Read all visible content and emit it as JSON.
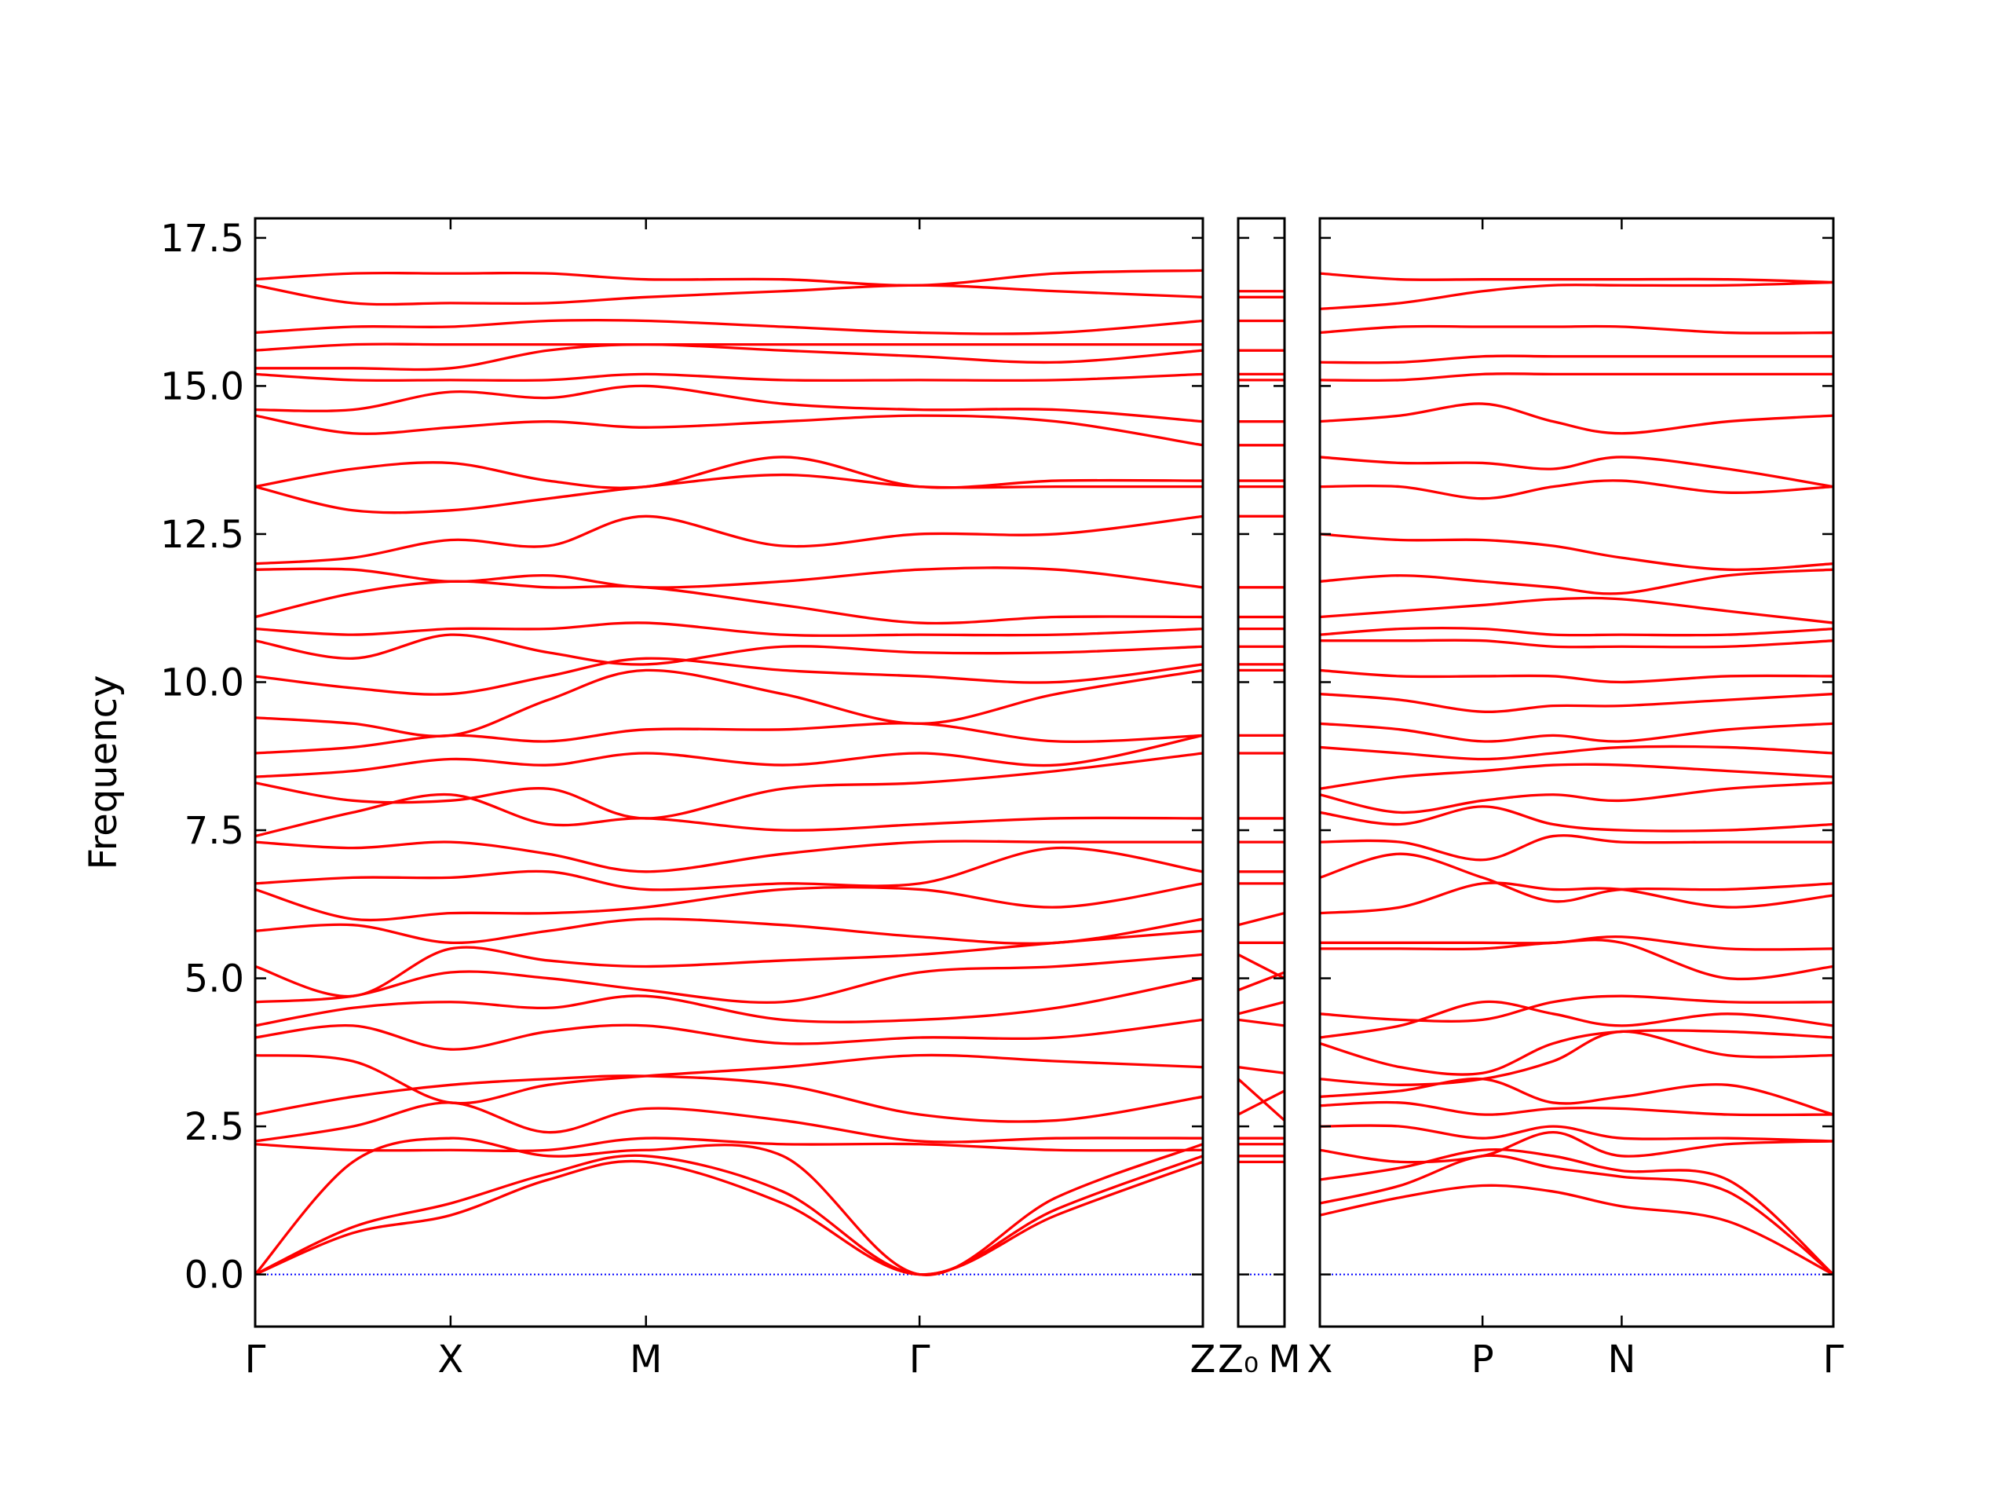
{
  "chart_data": [
    {
      "type": "line",
      "ylabel": "Frequency",
      "color": "#ff0000",
      "zero_line": 0,
      "zero_line_color": "#0000ff",
      "xlim": [
        0,
        4.85
      ],
      "ylim": [
        -0.88,
        17.83
      ],
      "xticks": [
        {
          "value": 0,
          "label": "Γ"
        },
        {
          "value": 1,
          "label": "X"
        },
        {
          "value": 2,
          "label": "M"
        },
        {
          "value": 3.4,
          "label": "Γ"
        },
        {
          "value": 4.85,
          "label": "Z"
        }
      ],
      "yticks": [
        {
          "value": 0,
          "label": "0.0"
        },
        2.5,
        {
          "value": 5,
          "label": "5.0"
        },
        7.5,
        {
          "value": 10,
          "label": "10.0"
        },
        12.5,
        {
          "value": 15,
          "label": "15.0"
        },
        17.5
      ],
      "x": [
        0,
        0.5,
        1,
        1.5,
        2,
        2.7,
        3.4,
        4.1,
        4.85
      ],
      "series": [
        {
          "values": [
            0,
            0.7,
            1.0,
            1.6,
            1.9,
            1.2,
            0,
            1.0,
            1.9
          ]
        },
        {
          "values": [
            0,
            0.8,
            1.2,
            1.7,
            2.0,
            1.4,
            0,
            1.1,
            2.0
          ]
        },
        {
          "values": [
            0,
            1.9,
            2.3,
            2.0,
            2.1,
            2.0,
            0,
            1.3,
            2.2
          ]
        },
        {
          "values": [
            2.2,
            2.1,
            2.1,
            2.1,
            2.3,
            2.2,
            2.2,
            2.1,
            2.1
          ]
        },
        {
          "values": [
            2.25,
            2.5,
            2.9,
            2.4,
            2.8,
            2.6,
            2.25,
            2.3,
            2.3
          ]
        },
        {
          "values": [
            2.7,
            3.0,
            3.2,
            3.3,
            3.35,
            3.2,
            2.7,
            2.6,
            3.0
          ]
        },
        {
          "values": [
            3.7,
            3.6,
            2.9,
            3.2,
            3.35,
            3.5,
            3.7,
            3.6,
            3.5
          ]
        },
        {
          "values": [
            4.0,
            4.2,
            3.8,
            4.1,
            4.2,
            3.9,
            4.0,
            4.0,
            4.3
          ]
        },
        {
          "values": [
            4.2,
            4.5,
            4.6,
            4.5,
            4.7,
            4.3,
            4.3,
            4.5,
            5.0
          ]
        },
        {
          "values": [
            4.6,
            4.7,
            5.1,
            5.0,
            4.8,
            4.6,
            5.1,
            5.2,
            5.4
          ]
        },
        {
          "values": [
            5.2,
            4.7,
            5.5,
            5.3,
            5.2,
            5.3,
            5.4,
            5.6,
            5.8
          ]
        },
        {
          "values": [
            5.8,
            5.9,
            5.6,
            5.8,
            6.0,
            5.9,
            5.7,
            5.6,
            6.0
          ]
        },
        {
          "values": [
            6.5,
            6.0,
            6.1,
            6.1,
            6.2,
            6.5,
            6.5,
            6.2,
            6.6
          ]
        },
        {
          "values": [
            6.6,
            6.7,
            6.7,
            6.8,
            6.5,
            6.6,
            6.6,
            7.2,
            6.8
          ]
        },
        {
          "values": [
            7.3,
            7.2,
            7.3,
            7.1,
            6.8,
            7.1,
            7.3,
            7.3,
            7.3
          ]
        },
        {
          "values": [
            7.4,
            7.8,
            8.1,
            7.6,
            7.7,
            7.5,
            7.6,
            7.7,
            7.7
          ]
        },
        {
          "values": [
            8.3,
            8.0,
            8.0,
            8.2,
            7.7,
            8.2,
            8.3,
            8.5,
            8.8
          ]
        },
        {
          "values": [
            8.4,
            8.5,
            8.7,
            8.6,
            8.8,
            8.6,
            8.8,
            8.6,
            9.1
          ]
        },
        {
          "values": [
            8.8,
            8.9,
            9.1,
            9.0,
            9.2,
            9.2,
            9.3,
            9.0,
            9.1
          ]
        },
        {
          "values": [
            9.4,
            9.3,
            9.1,
            9.7,
            10.2,
            9.8,
            9.3,
            9.8,
            10.2
          ]
        },
        {
          "values": [
            10.1,
            9.9,
            9.8,
            10.1,
            10.4,
            10.2,
            10.1,
            10.0,
            10.3
          ]
        },
        {
          "values": [
            10.7,
            10.4,
            10.8,
            10.5,
            10.3,
            10.6,
            10.5,
            10.5,
            10.6
          ]
        },
        {
          "values": [
            10.9,
            10.8,
            10.9,
            10.9,
            11.0,
            10.8,
            10.8,
            10.8,
            10.9
          ]
        },
        {
          "values": [
            11.1,
            11.5,
            11.7,
            11.6,
            11.6,
            11.3,
            11.0,
            11.1,
            11.1
          ]
        },
        {
          "values": [
            11.9,
            11.9,
            11.7,
            11.8,
            11.6,
            11.7,
            11.9,
            11.9,
            11.6
          ]
        },
        {
          "values": [
            12.0,
            12.1,
            12.4,
            12.3,
            12.8,
            12.3,
            12.5,
            12.5,
            12.8
          ]
        },
        {
          "values": [
            13.3,
            12.9,
            12.9,
            13.1,
            13.3,
            13.5,
            13.3,
            13.3,
            13.3
          ]
        },
        {
          "values": [
            13.3,
            13.6,
            13.7,
            13.4,
            13.3,
            13.8,
            13.3,
            13.4,
            13.4
          ]
        },
        {
          "values": [
            14.5,
            14.2,
            14.3,
            14.4,
            14.3,
            14.4,
            14.5,
            14.4,
            14.0
          ]
        },
        {
          "values": [
            14.6,
            14.6,
            14.9,
            14.8,
            15.0,
            14.7,
            14.6,
            14.6,
            14.4
          ]
        },
        {
          "values": [
            15.2,
            15.1,
            15.1,
            15.1,
            15.2,
            15.1,
            15.1,
            15.1,
            15.2
          ]
        },
        {
          "values": [
            15.3,
            15.3,
            15.3,
            15.6,
            15.7,
            15.6,
            15.5,
            15.4,
            15.6
          ]
        },
        {
          "values": [
            15.6,
            15.7,
            15.7,
            15.7,
            15.7,
            15.7,
            15.7,
            15.7,
            15.7
          ]
        },
        {
          "values": [
            15.9,
            16.0,
            16.0,
            16.1,
            16.1,
            16.0,
            15.9,
            15.9,
            16.1
          ]
        },
        {
          "values": [
            16.7,
            16.4,
            16.4,
            16.4,
            16.5,
            16.6,
            16.7,
            16.6,
            16.5
          ]
        },
        {
          "values": [
            16.8,
            16.9,
            16.9,
            16.9,
            16.8,
            16.8,
            16.7,
            16.9,
            16.95
          ]
        }
      ]
    },
    {
      "type": "line",
      "color": "#ff0000",
      "zero_line": 0,
      "zero_line_color": "#0000ff",
      "xlim": [
        0,
        0.24
      ],
      "ylim": [
        -0.88,
        17.83
      ],
      "xticks": [
        {
          "value": 0,
          "label": "Z₀"
        },
        {
          "value": 0.24,
          "label": "M"
        }
      ],
      "yticks": [
        0,
        2.5,
        5,
        7.5,
        10,
        12.5,
        15,
        17.5
      ],
      "x": [
        0,
        0.24
      ],
      "series": [
        {
          "values": [
            1.9,
            1.9
          ]
        },
        {
          "values": [
            2.0,
            2.0
          ]
        },
        {
          "values": [
            2.2,
            2.2
          ]
        },
        {
          "values": [
            2.3,
            2.3
          ]
        },
        {
          "values": [
            2.7,
            3.1
          ]
        },
        {
          "values": [
            3.3,
            2.6
          ]
        },
        {
          "values": [
            3.5,
            3.4
          ]
        },
        {
          "values": [
            4.3,
            4.2
          ]
        },
        {
          "values": [
            4.4,
            4.6
          ]
        },
        {
          "values": [
            4.8,
            5.1
          ]
        },
        {
          "values": [
            5.4,
            5.0
          ]
        },
        {
          "values": [
            5.6,
            5.6
          ]
        },
        {
          "values": [
            5.9,
            6.1
          ]
        },
        {
          "values": [
            6.6,
            6.6
          ]
        },
        {
          "values": [
            6.8,
            6.8
          ]
        },
        {
          "values": [
            7.3,
            7.3
          ]
        },
        {
          "values": [
            7.7,
            7.7
          ]
        },
        {
          "values": [
            8.8,
            8.8
          ]
        },
        {
          "values": [
            9.1,
            9.1
          ]
        },
        {
          "values": [
            10.2,
            10.2
          ]
        },
        {
          "values": [
            10.3,
            10.3
          ]
        },
        {
          "values": [
            10.6,
            10.6
          ]
        },
        {
          "values": [
            10.9,
            10.9
          ]
        },
        {
          "values": [
            11.1,
            11.1
          ]
        },
        {
          "values": [
            11.6,
            11.6
          ]
        },
        {
          "values": [
            12.8,
            12.8
          ]
        },
        {
          "values": [
            13.3,
            13.3
          ]
        },
        {
          "values": [
            13.4,
            13.4
          ]
        },
        {
          "values": [
            14.0,
            14.0
          ]
        },
        {
          "values": [
            14.4,
            14.4
          ]
        },
        {
          "values": [
            15.1,
            15.1
          ]
        },
        {
          "values": [
            15.2,
            15.2
          ]
        },
        {
          "values": [
            15.6,
            15.6
          ]
        },
        {
          "values": [
            16.1,
            16.1
          ]
        },
        {
          "values": [
            16.5,
            16.5
          ]
        },
        {
          "values": [
            16.6,
            16.6
          ]
        }
      ]
    },
    {
      "type": "line",
      "color": "#ff0000",
      "zero_line": 0,
      "zero_line_color": "#0000ff",
      "xlim": [
        0,
        2.62
      ],
      "ylim": [
        -0.88,
        17.83
      ],
      "xticks": [
        {
          "value": 0,
          "label": "X"
        },
        {
          "value": 0.83,
          "label": "P"
        },
        {
          "value": 1.54,
          "label": "N"
        },
        {
          "value": 2.62,
          "label": "Γ"
        }
      ],
      "yticks": [
        0,
        2.5,
        5,
        7.5,
        10,
        12.5,
        15,
        17.5
      ],
      "x": [
        0,
        0.41,
        0.83,
        1.19,
        1.54,
        2.08,
        2.62
      ],
      "series": [
        {
          "values": [
            1.0,
            1.3,
            1.5,
            1.4,
            1.15,
            0.9,
            0
          ]
        },
        {
          "values": [
            1.2,
            1.5,
            2.0,
            1.8,
            1.65,
            1.4,
            0
          ]
        },
        {
          "values": [
            1.6,
            1.8,
            2.1,
            2.0,
            1.75,
            1.6,
            0
          ]
        },
        {
          "values": [
            2.1,
            1.9,
            2.0,
            2.4,
            2.0,
            2.2,
            2.25
          ]
        },
        {
          "values": [
            2.5,
            2.5,
            2.3,
            2.5,
            2.3,
            2.3,
            2.25
          ]
        },
        {
          "values": [
            2.85,
            2.9,
            2.7,
            2.8,
            2.8,
            2.7,
            2.7
          ]
        },
        {
          "values": [
            3.0,
            3.1,
            3.3,
            2.9,
            3.0,
            3.2,
            2.7
          ]
        },
        {
          "values": [
            3.3,
            3.2,
            3.3,
            3.6,
            4.1,
            3.7,
            3.7
          ]
        },
        {
          "values": [
            3.9,
            3.5,
            3.4,
            3.9,
            4.1,
            4.1,
            4.0
          ]
        },
        {
          "values": [
            4.0,
            4.2,
            4.6,
            4.4,
            4.2,
            4.4,
            4.2
          ]
        },
        {
          "values": [
            4.4,
            4.3,
            4.3,
            4.6,
            4.7,
            4.6,
            4.6
          ]
        },
        {
          "values": [
            5.5,
            5.5,
            5.5,
            5.6,
            5.6,
            5.0,
            5.2
          ]
        },
        {
          "values": [
            5.6,
            5.6,
            5.6,
            5.6,
            5.7,
            5.5,
            5.5
          ]
        },
        {
          "values": [
            6.1,
            6.2,
            6.6,
            6.5,
            6.5,
            6.2,
            6.4
          ]
        },
        {
          "values": [
            6.7,
            7.1,
            6.7,
            6.3,
            6.5,
            6.5,
            6.6
          ]
        },
        {
          "values": [
            7.3,
            7.3,
            7.0,
            7.4,
            7.3,
            7.3,
            7.3
          ]
        },
        {
          "values": [
            7.8,
            7.6,
            7.9,
            7.6,
            7.5,
            7.5,
            7.6
          ]
        },
        {
          "values": [
            8.1,
            7.8,
            8.0,
            8.1,
            8.0,
            8.2,
            8.3
          ]
        },
        {
          "values": [
            8.2,
            8.4,
            8.5,
            8.6,
            8.6,
            8.5,
            8.4
          ]
        },
        {
          "values": [
            8.9,
            8.8,
            8.7,
            8.8,
            8.9,
            8.9,
            8.8
          ]
        },
        {
          "values": [
            9.3,
            9.2,
            9.0,
            9.1,
            9.0,
            9.2,
            9.3
          ]
        },
        {
          "values": [
            9.8,
            9.7,
            9.5,
            9.6,
            9.6,
            9.7,
            9.8
          ]
        },
        {
          "values": [
            10.2,
            10.1,
            10.1,
            10.1,
            10.0,
            10.1,
            10.1
          ]
        },
        {
          "values": [
            10.7,
            10.7,
            10.7,
            10.6,
            10.6,
            10.6,
            10.7
          ]
        },
        {
          "values": [
            10.8,
            10.9,
            10.9,
            10.8,
            10.8,
            10.8,
            10.9
          ]
        },
        {
          "values": [
            11.1,
            11.2,
            11.3,
            11.4,
            11.4,
            11.2,
            11.0
          ]
        },
        {
          "values": [
            11.7,
            11.8,
            11.7,
            11.6,
            11.5,
            11.8,
            11.9
          ]
        },
        {
          "values": [
            12.5,
            12.4,
            12.4,
            12.3,
            12.1,
            11.9,
            12.0
          ]
        },
        {
          "values": [
            13.3,
            13.3,
            13.1,
            13.3,
            13.4,
            13.2,
            13.3
          ]
        },
        {
          "values": [
            13.8,
            13.7,
            13.7,
            13.6,
            13.8,
            13.6,
            13.3
          ]
        },
        {
          "values": [
            14.4,
            14.5,
            14.7,
            14.4,
            14.2,
            14.4,
            14.5
          ]
        },
        {
          "values": [
            15.1,
            15.1,
            15.2,
            15.2,
            15.2,
            15.2,
            15.2
          ]
        },
        {
          "values": [
            15.4,
            15.4,
            15.5,
            15.5,
            15.5,
            15.5,
            15.5
          ]
        },
        {
          "values": [
            15.9,
            16.0,
            16.0,
            16.0,
            16.0,
            15.9,
            15.9
          ]
        },
        {
          "values": [
            16.3,
            16.4,
            16.6,
            16.7,
            16.7,
            16.7,
            16.75
          ]
        },
        {
          "values": [
            16.9,
            16.8,
            16.8,
            16.8,
            16.8,
            16.8,
            16.75
          ]
        }
      ]
    }
  ]
}
